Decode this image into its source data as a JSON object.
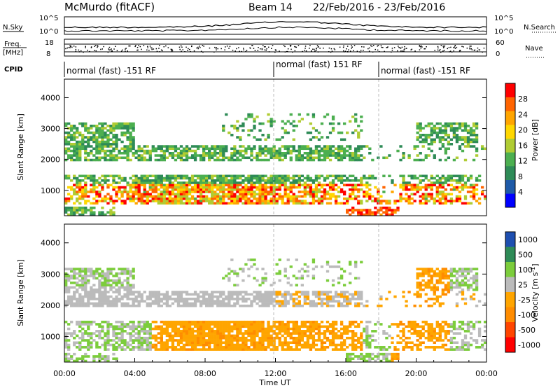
{
  "header": {
    "site": "McMurdo (fitACF)",
    "beam": "Beam 14",
    "date_range": "22/Feb/2016 - 23/Feb/2016"
  },
  "noise_panel": {
    "left_label": "N.Sky",
    "right_label": "N.Search",
    "left_ticks": [
      "10^5",
      "10^0"
    ],
    "right_ticks": [
      "10^5",
      "10^0"
    ]
  },
  "freq_panel": {
    "left_label_1": "Freq.",
    "left_label_2": "[MHz]",
    "right_label": "Nave",
    "left_ticks": [
      "18",
      "8"
    ],
    "right_ticks": [
      "60",
      "0"
    ]
  },
  "cpid": {
    "label": "CPID",
    "segments": [
      {
        "text": "normal (fast) -151 RF",
        "start_hour": 0
      },
      {
        "text": "normal (fast) 151 RF",
        "start_hour": 12
      },
      {
        "text": "normal (fast) -151 RF",
        "start_hour": 18
      }
    ]
  },
  "colors": {
    "scale": [
      "#0000ff",
      "#1e5aa8",
      "#2e8b57",
      "#4caf50",
      "#b0cc33",
      "#ffd700",
      "#ffa500",
      "#ff6400",
      "#ff0000"
    ]
  },
  "chart_data": [
    {
      "type": "heatmap",
      "quantity": "power",
      "ylabel": "Slant Range [km]",
      "ylim": [
        180,
        4600
      ],
      "y_ticks": [
        "1000",
        "2000",
        "3000",
        "4000"
      ],
      "y_tick_values": [
        1000,
        2000,
        3000,
        4000
      ],
      "colorbar_label": "Power [dB]",
      "colorbar_ticks": [
        "4",
        "8",
        "12",
        "16",
        "20",
        "24",
        "28"
      ],
      "colorbar_range": [
        0,
        32
      ]
    },
    {
      "type": "heatmap",
      "quantity": "velocity",
      "ylabel": "Slant Range [km]",
      "ylim": [
        180,
        4600
      ],
      "y_ticks": [
        "1000",
        "2000",
        "3000",
        "4000"
      ],
      "y_tick_values": [
        1000,
        2000,
        3000,
        4000
      ],
      "colorbar_label": "Velocity [m s",
      "colorbar_label_sup": "-1",
      "colorbar_label_end": "]",
      "colorbar_ticks": [
        "1000",
        "500",
        "100",
        "25",
        "-25",
        "-100",
        "-500",
        "-1000"
      ],
      "xlabel": "Time UT",
      "x_ticks": [
        "00:00",
        "04:00",
        "08:00",
        "12:00",
        "16:00",
        "20:00",
        "00:00"
      ],
      "x_tick_hours": [
        0,
        4,
        8,
        12,
        16,
        20,
        24
      ]
    }
  ]
}
